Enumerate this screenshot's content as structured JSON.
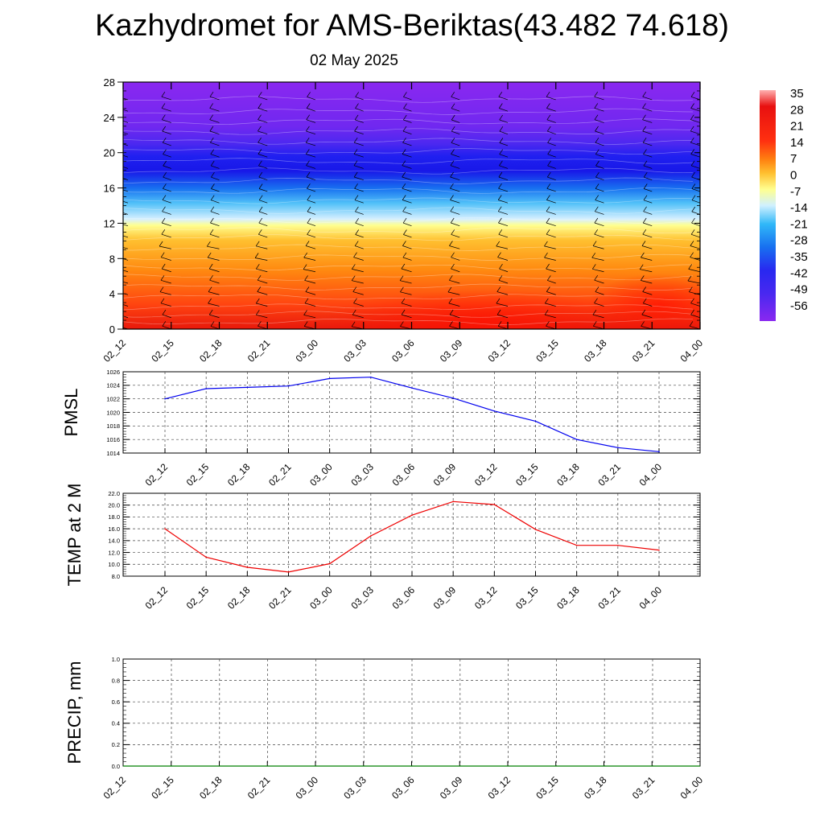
{
  "header": {
    "title": "Kazhydromet for AMS-Beriktas(43.482 74.618)",
    "subtitle": "02 May 2025"
  },
  "chart_data": [
    {
      "type": "heatmap",
      "name": "temperature-cross-section",
      "x_ticks": [
        "02_12",
        "02_15",
        "02_18",
        "02_21",
        "03_00",
        "03_03",
        "03_06",
        "03_09",
        "03_12",
        "03_15",
        "03_18",
        "03_21",
        "04_00"
      ],
      "y_ticks": [
        0,
        4,
        8,
        12,
        16,
        20,
        24,
        28
      ],
      "ylim": [
        0,
        28
      ],
      "colorbar_labels": [
        "35",
        "28",
        "21",
        "14",
        "7",
        "0",
        "-7",
        "-14",
        "-21",
        "-28",
        "-35",
        "-42",
        "-49",
        "-56"
      ],
      "colorbar_range": [
        -60,
        38
      ],
      "colors": {
        "hot": "#e8180c",
        "warm": "#ff7a10",
        "mild": "#ffd030",
        "cool": "#ffffb0",
        "cold": "#1ca8f0",
        "frigid": "#1e1ef0",
        "top": "#8a28f0"
      },
      "wind_barbs": true
    },
    {
      "type": "line",
      "ylabel": "PMSL",
      "x": [
        "02_12",
        "02_15",
        "02_18",
        "02_21",
        "03_00",
        "03_03",
        "03_06",
        "03_09",
        "03_12",
        "03_15",
        "03_18",
        "03_21",
        "04_00"
      ],
      "values": [
        1022.0,
        1023.5,
        1023.7,
        1023.9,
        1025.0,
        1025.2,
        1023.6,
        1022.1,
        1020.2,
        1018.7,
        1016.0,
        1014.8,
        1014.2
      ],
      "ylim": [
        1014,
        1026
      ],
      "y_ticks": [
        "1014",
        "1016",
        "1018",
        "1020",
        "1022",
        "1024",
        "1026"
      ],
      "color": "#0000ee",
      "grid": true
    },
    {
      "type": "line",
      "ylabel": "TEMP at 2 M",
      "x": [
        "02_12",
        "02_15",
        "02_18",
        "02_21",
        "03_00",
        "03_03",
        "03_06",
        "03_09",
        "03_12",
        "03_15",
        "03_18",
        "03_21",
        "04_00"
      ],
      "values": [
        16.0,
        11.2,
        9.5,
        8.7,
        10.1,
        14.8,
        18.3,
        20.6,
        20.1,
        15.9,
        13.2,
        13.2,
        12.4
      ],
      "ylim": [
        8,
        22
      ],
      "y_ticks": [
        "8.0",
        "10.0",
        "12.0",
        "14.0",
        "16.0",
        "18.0",
        "20.0",
        "22.0"
      ],
      "color": "#ee0000",
      "grid": true
    },
    {
      "type": "line",
      "ylabel": "PRECIP, mm",
      "x_ticks": [
        "02_12",
        "02_15",
        "02_18",
        "02_21",
        "03_00",
        "03_03",
        "03_06",
        "03_09",
        "03_12",
        "03_15",
        "03_18",
        "03_21",
        "04_00"
      ],
      "values": [
        0,
        0,
        0,
        0,
        0,
        0,
        0,
        0,
        0,
        0,
        0,
        0,
        0
      ],
      "ylim": [
        0,
        1
      ],
      "y_ticks": [
        "0.0",
        "0.2",
        "0.4",
        "0.6",
        "0.8",
        "1.0"
      ],
      "color": "#008000",
      "grid": true
    }
  ]
}
